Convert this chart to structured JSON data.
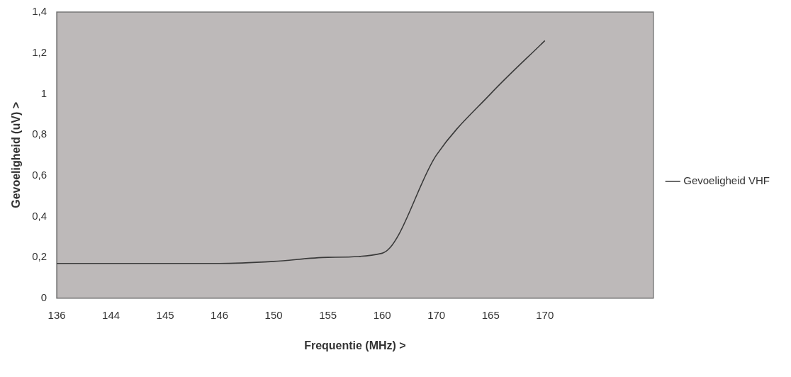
{
  "chart_data": {
    "type": "line",
    "xlabel": "Frequentie (MHz) >",
    "ylabel": "Gevoeligheid (uV) >",
    "categories": [
      "136",
      "144",
      "145",
      "146",
      "150",
      "155",
      "160",
      "170",
      "165",
      "170",
      null,
      null
    ],
    "series": [
      {
        "name": "Gevoeligheid VHF",
        "color": "#3a3a3a",
        "values": [
          0.17,
          0.17,
          0.17,
          0.17,
          0.18,
          0.2,
          0.22,
          0.7,
          1.0,
          1.26,
          null,
          null
        ]
      }
    ],
    "ylim": [
      0,
      1.4
    ],
    "yticks": [
      {
        "value": 0,
        "label": "0"
      },
      {
        "value": 0.2,
        "label": "0,2"
      },
      {
        "value": 0.4,
        "label": "0,4"
      },
      {
        "value": 0.6,
        "label": "0,6"
      },
      {
        "value": 0.8,
        "label": "0,8"
      },
      {
        "value": 1,
        "label": "1"
      },
      {
        "value": 1.2,
        "label": "1,2"
      },
      {
        "value": 1.4,
        "label": "1,4"
      }
    ],
    "grid": false,
    "legend": "right",
    "marker": "none",
    "line_style": "solid"
  }
}
